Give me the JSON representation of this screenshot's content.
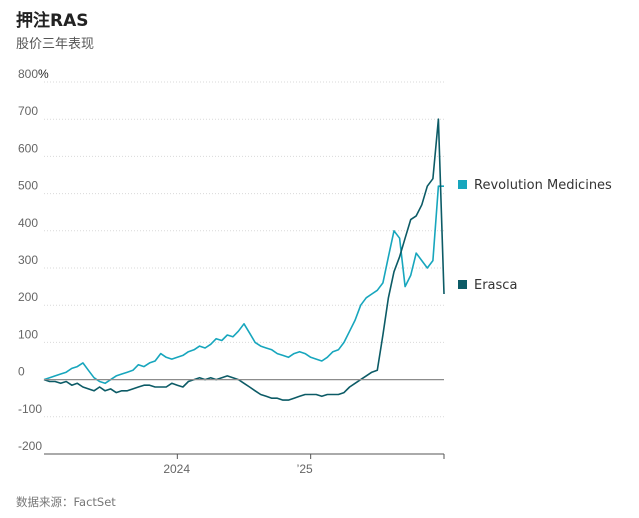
{
  "header": {
    "title": "押注RAS",
    "subtitle": "股价三年表现"
  },
  "footer": {
    "source": "数据来源：FactSet"
  },
  "colors": {
    "revolution": "#17a6bd",
    "erasca": "#0c5b66",
    "grid": "#d9d9d9",
    "zero_line": "#8c8c8c",
    "tick_text": "#666666"
  },
  "chart_data": {
    "type": "line",
    "title": "押注RAS",
    "subtitle": "股价三年表现",
    "y_unit": "%",
    "ylim": [
      -200,
      800
    ],
    "yticks": [
      -200,
      -100,
      0,
      100,
      200,
      300,
      400,
      500,
      600,
      700,
      800
    ],
    "ytick_labels": [
      "-200",
      "-100",
      "0",
      "100",
      "200",
      "300",
      "400",
      "500",
      "600",
      "700",
      "800"
    ],
    "top_tick_suffix": "%",
    "xlim": [
      0,
      36
    ],
    "xticks": [
      {
        "x": 12,
        "label": "2024"
      },
      {
        "x": 24,
        "label": "’25"
      },
      {
        "x": 36,
        "label": ""
      }
    ],
    "series": [
      {
        "name": "Revolution Medicines",
        "x": [
          0,
          0.5,
          1,
          1.5,
          2,
          2.5,
          3,
          3.5,
          4,
          4.5,
          5,
          5.5,
          6,
          6.5,
          7,
          7.5,
          8,
          8.5,
          9,
          9.5,
          10,
          10.5,
          11,
          11.5,
          12,
          12.5,
          13,
          13.5,
          14,
          14.5,
          15,
          15.5,
          16,
          16.5,
          17,
          17.5,
          18,
          18.5,
          19,
          19.5,
          20,
          20.5,
          21,
          21.5,
          22,
          22.5,
          23,
          23.5,
          24,
          24.5,
          25,
          25.5,
          26,
          26.5,
          27,
          27.5,
          28,
          28.5,
          29,
          29.5,
          30,
          30.5,
          31,
          31.5,
          32,
          32.5,
          33,
          33.5,
          34,
          34.5,
          35,
          35.5,
          36
        ],
        "values": [
          0,
          5,
          10,
          15,
          20,
          30,
          35,
          45,
          25,
          5,
          -5,
          -10,
          0,
          10,
          15,
          20,
          25,
          40,
          35,
          45,
          50,
          70,
          60,
          55,
          60,
          65,
          75,
          80,
          90,
          85,
          95,
          110,
          105,
          120,
          115,
          130,
          150,
          125,
          100,
          90,
          85,
          80,
          70,
          65,
          60,
          70,
          75,
          70,
          60,
          55,
          50,
          60,
          75,
          80,
          100,
          130,
          160,
          200,
          220,
          230,
          240,
          260,
          330,
          400,
          380,
          250,
          280,
          340,
          320,
          300,
          320,
          520,
          520
        ]
      },
      {
        "name": "Erasca",
        "x": [
          0,
          0.5,
          1,
          1.5,
          2,
          2.5,
          3,
          3.5,
          4,
          4.5,
          5,
          5.5,
          6,
          6.5,
          7,
          7.5,
          8,
          8.5,
          9,
          9.5,
          10,
          10.5,
          11,
          11.5,
          12,
          12.5,
          13,
          13.5,
          14,
          14.5,
          15,
          15.5,
          16,
          16.5,
          17,
          17.5,
          18,
          18.5,
          19,
          19.5,
          20,
          20.5,
          21,
          21.5,
          22,
          22.5,
          23,
          23.5,
          24,
          24.5,
          25,
          25.5,
          26,
          26.5,
          27,
          27.5,
          28,
          28.5,
          29,
          29.5,
          30,
          30.5,
          31,
          31.5,
          32,
          32.5,
          33,
          33.5,
          34,
          34.5,
          35,
          35.5,
          36
        ],
        "values": [
          0,
          -5,
          -5,
          -10,
          -5,
          -15,
          -10,
          -20,
          -25,
          -30,
          -20,
          -30,
          -25,
          -35,
          -30,
          -30,
          -25,
          -20,
          -15,
          -15,
          -20,
          -20,
          -20,
          -10,
          -15,
          -20,
          -5,
          0,
          5,
          0,
          5,
          0,
          5,
          10,
          5,
          0,
          -10,
          -20,
          -30,
          -40,
          -45,
          -50,
          -50,
          -55,
          -55,
          -50,
          -45,
          -40,
          -40,
          -40,
          -45,
          -40,
          -40,
          -40,
          -35,
          -20,
          -10,
          0,
          10,
          20,
          25,
          120,
          220,
          290,
          330,
          380,
          430,
          440,
          470,
          520,
          540,
          700,
          230
        ]
      }
    ]
  }
}
